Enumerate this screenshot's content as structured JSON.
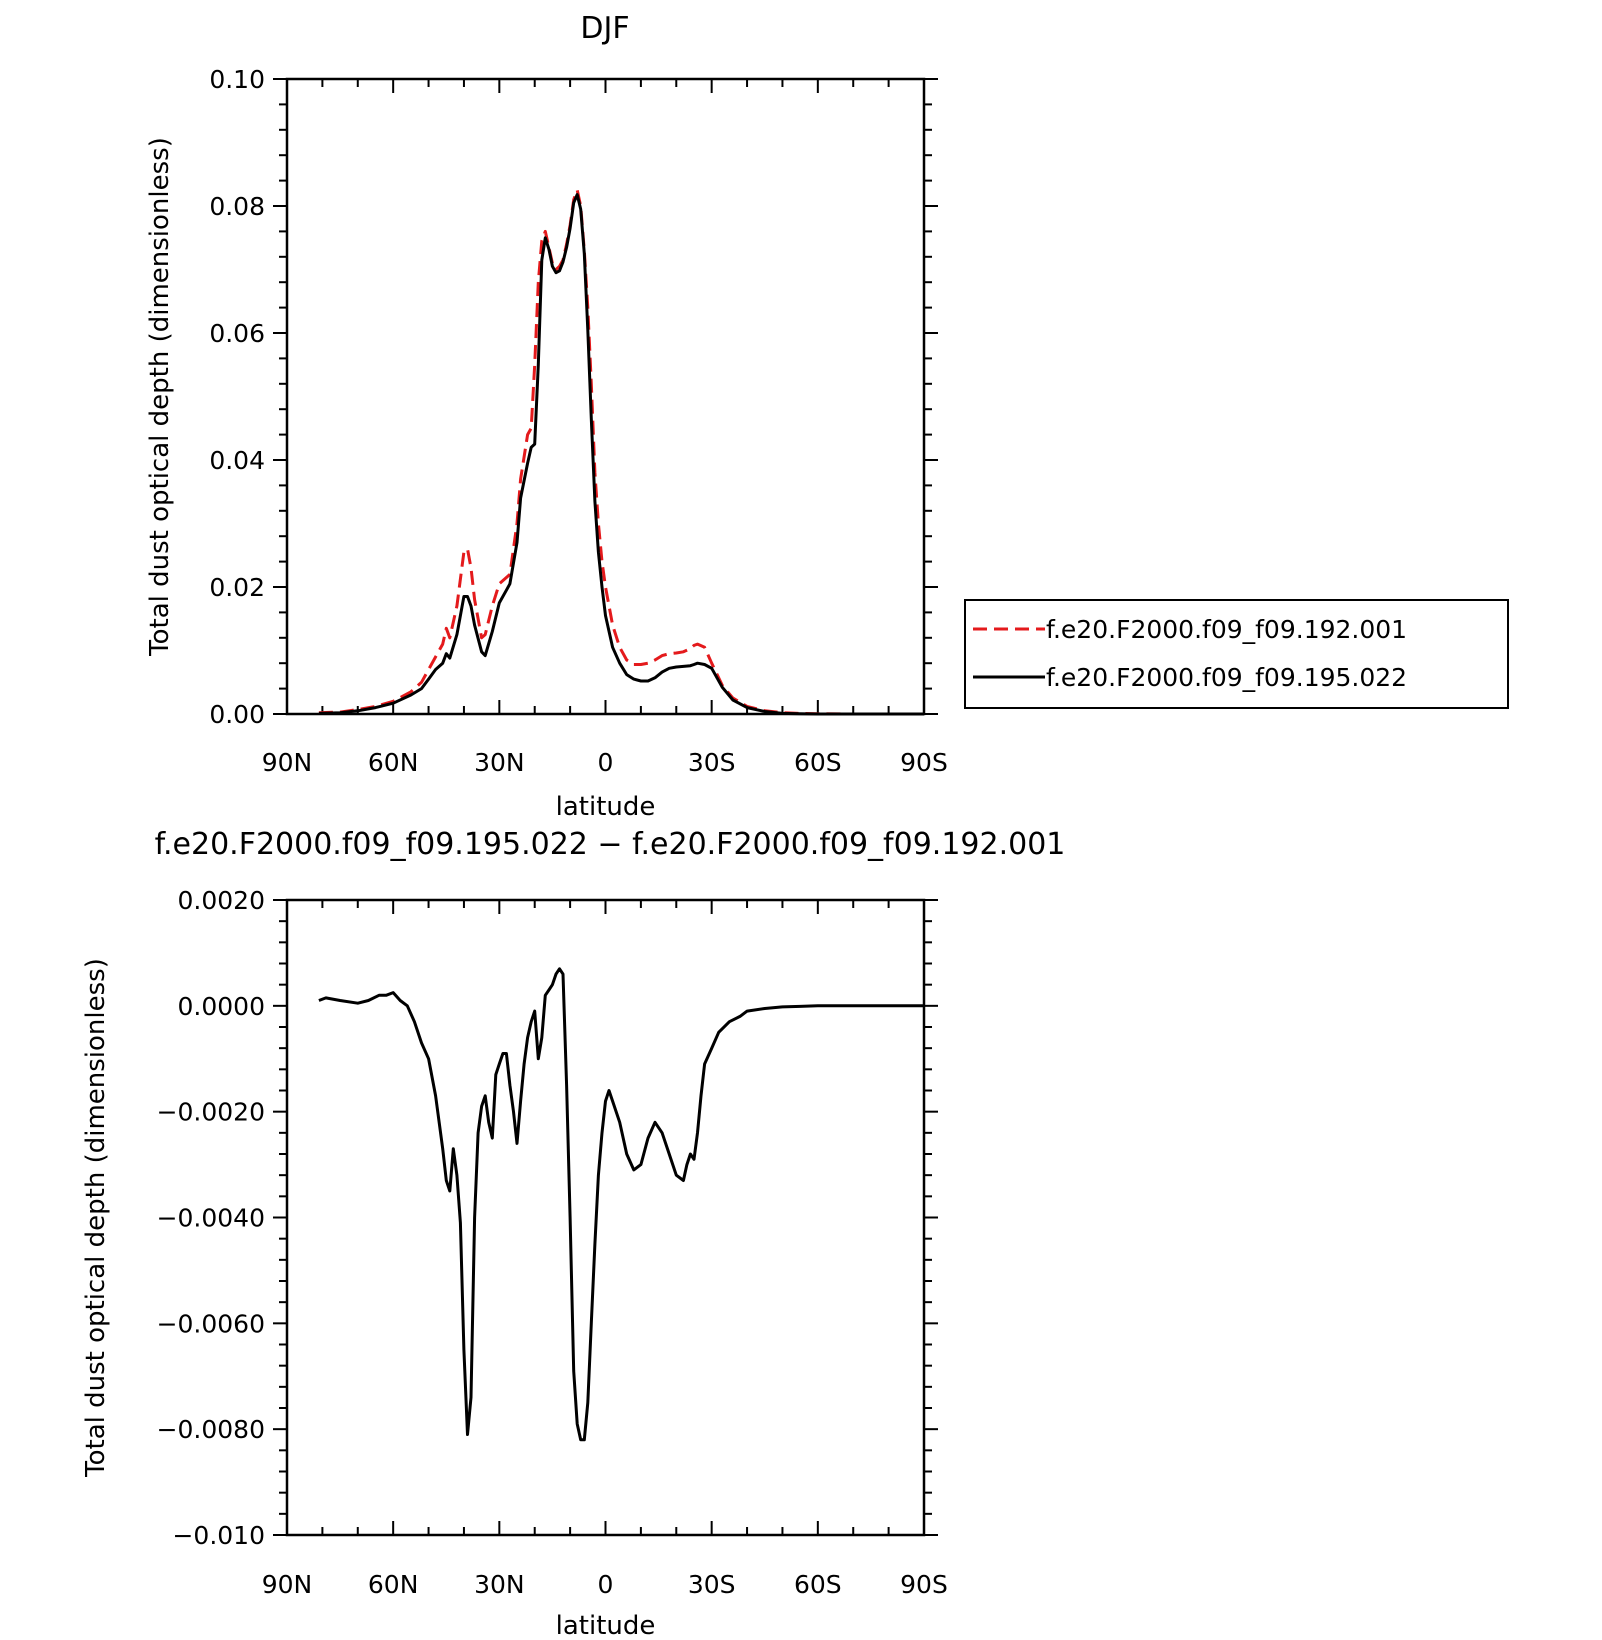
{
  "chart_data": [
    {
      "type": "line",
      "title": "DJF",
      "xlabel": "latitude",
      "ylabel": "Total dust optical depth (dimensionless)",
      "xlim": [
        90,
        -90
      ],
      "ylim": [
        0.0,
        0.1
      ],
      "x_ticks": [
        90,
        60,
        30,
        0,
        -30,
        -60,
        -90
      ],
      "x_tick_labels": [
        "90N",
        "60N",
        "30N",
        "0",
        "30S",
        "60S",
        "90S"
      ],
      "y_ticks": [
        0.0,
        0.02,
        0.04,
        0.06,
        0.08,
        0.1
      ],
      "y_tick_labels": [
        "0.00",
        "0.02",
        "0.04",
        "0.06",
        "0.08",
        "0.10"
      ],
      "legend_position": "right",
      "series": [
        {
          "name": "f.e20.F2000.f09_f09.192.001",
          "color": "#e41a1c",
          "dash": "dashed",
          "x": [
            81,
            75,
            70,
            65,
            60,
            55,
            52,
            50,
            48,
            46,
            45,
            44,
            42,
            40,
            39,
            38,
            37,
            35,
            34,
            32,
            30,
            28,
            27,
            25,
            24,
            22,
            21,
            20,
            19,
            18,
            17,
            16,
            15,
            14,
            13,
            12,
            11,
            10,
            9,
            8,
            7,
            6,
            5,
            4,
            3,
            2,
            1,
            0,
            -2,
            -4,
            -6,
            -8,
            -10,
            -12,
            -14,
            -16,
            -18,
            -20,
            -22,
            -24,
            -25,
            -26,
            -28,
            -30,
            -33,
            -36,
            -40,
            -45,
            -50,
            -55,
            -60,
            -70,
            -80,
            -90
          ],
          "y": [
            0.0002,
            0.0003,
            0.0007,
            0.0012,
            0.002,
            0.0035,
            0.005,
            0.007,
            0.009,
            0.011,
            0.0135,
            0.012,
            0.017,
            0.0255,
            0.026,
            0.023,
            0.018,
            0.012,
            0.0125,
            0.017,
            0.0205,
            0.0215,
            0.022,
            0.03,
            0.037,
            0.044,
            0.045,
            0.055,
            0.068,
            0.0745,
            0.076,
            0.0735,
            0.071,
            0.07,
            0.0705,
            0.0715,
            0.074,
            0.077,
            0.081,
            0.0825,
            0.08,
            0.073,
            0.064,
            0.052,
            0.038,
            0.03,
            0.024,
            0.02,
            0.014,
            0.0105,
            0.0085,
            0.0078,
            0.0078,
            0.008,
            0.0085,
            0.0092,
            0.0095,
            0.0096,
            0.0098,
            0.0103,
            0.0108,
            0.011,
            0.0105,
            0.008,
            0.0045,
            0.0025,
            0.0012,
            0.0005,
            0.0002,
            0.0001,
            5e-05,
            0.0,
            0.0,
            0.0
          ]
        },
        {
          "name": "f.e20.F2000.f09_f09.195.022",
          "color": "#000000",
          "dash": "solid",
          "x": [
            81,
            75,
            70,
            65,
            60,
            55,
            52,
            50,
            48,
            46,
            45,
            44,
            42,
            40,
            39,
            38,
            37,
            35,
            34,
            32,
            30,
            28,
            27,
            25,
            24,
            22,
            21,
            20,
            19,
            18,
            17,
            16,
            15,
            14,
            13,
            12,
            11,
            10,
            9,
            8,
            7,
            6,
            5,
            4,
            3,
            2,
            1,
            0,
            -2,
            -4,
            -6,
            -8,
            -10,
            -12,
            -14,
            -16,
            -18,
            -20,
            -22,
            -24,
            -25,
            -26,
            -28,
            -30,
            -33,
            -36,
            -40,
            -45,
            -50,
            -55,
            -60,
            -70,
            -80,
            -90
          ],
          "y": [
            0.0001,
            0.0002,
            0.0005,
            0.001,
            0.0017,
            0.003,
            0.004,
            0.0055,
            0.007,
            0.008,
            0.0095,
            0.0088,
            0.0125,
            0.0185,
            0.0185,
            0.017,
            0.014,
            0.0098,
            0.0092,
            0.013,
            0.0175,
            0.0195,
            0.0205,
            0.027,
            0.034,
            0.0395,
            0.042,
            0.0425,
            0.055,
            0.0715,
            0.075,
            0.0732,
            0.0705,
            0.0695,
            0.0698,
            0.0712,
            0.0735,
            0.0765,
            0.0805,
            0.0818,
            0.0795,
            0.0725,
            0.0605,
            0.0465,
            0.0335,
            0.0255,
            0.02,
            0.0155,
            0.0105,
            0.008,
            0.0062,
            0.0055,
            0.0052,
            0.0052,
            0.0057,
            0.0066,
            0.0072,
            0.0074,
            0.0075,
            0.0076,
            0.0078,
            0.008,
            0.0078,
            0.0072,
            0.0042,
            0.0022,
            0.001,
            0.0004,
            0.0001,
            5e-05,
            0.0,
            0.0,
            0.0,
            0.0
          ]
        }
      ]
    },
    {
      "type": "line",
      "title": "f.e20.F2000.f09_f09.195.022 − f.e20.F2000.f09_f09.192.001",
      "xlabel": "latitude",
      "ylabel": "Total dust optical depth (dimensionless)",
      "xlim": [
        90,
        -90
      ],
      "ylim": [
        -0.01,
        0.002
      ],
      "x_ticks": [
        90,
        60,
        30,
        0,
        -30,
        -60,
        -90
      ],
      "x_tick_labels": [
        "90N",
        "60N",
        "30N",
        "0",
        "30S",
        "60S",
        "90S"
      ],
      "y_ticks": [
        0.002,
        0.0,
        -0.002,
        -0.004,
        -0.006,
        -0.008,
        -0.01
      ],
      "y_tick_labels": [
        "0.0020",
        "0.0000",
        "−0.0020",
        "−0.0040",
        "−0.0060",
        "−0.0080",
        "−0.010"
      ],
      "series": [
        {
          "color": "#000000",
          "dash": "solid",
          "x": [
            81,
            79,
            75,
            70,
            67,
            64,
            62,
            60,
            58,
            56,
            54,
            52,
            50,
            48,
            46,
            45,
            44,
            43,
            42,
            41,
            40,
            39,
            38,
            37,
            36,
            35,
            34,
            33,
            32,
            31,
            30,
            29,
            28,
            27,
            26,
            25,
            24,
            23,
            22,
            21,
            20,
            19,
            18,
            17,
            16,
            15,
            14,
            13,
            12,
            11,
            10,
            9,
            8,
            7,
            6,
            5,
            4,
            3,
            2,
            1,
            0,
            -1,
            -2,
            -4,
            -6,
            -8,
            -10,
            -12,
            -14,
            -16,
            -18,
            -20,
            -22,
            -23,
            -24,
            -25,
            -26,
            -27,
            -28,
            -30,
            -32,
            -35,
            -38,
            -40,
            -45,
            -50,
            -55,
            -60,
            -70,
            -80,
            -90
          ],
          "y": [
            0.0001,
            0.00015,
            0.0001,
            5e-05,
            0.0001,
            0.0002,
            0.0002,
            0.00025,
            0.0001,
            0.0,
            -0.0003,
            -0.0007,
            -0.001,
            -0.0017,
            -0.0027,
            -0.0033,
            -0.0035,
            -0.0027,
            -0.0032,
            -0.0041,
            -0.0065,
            -0.0081,
            -0.0074,
            -0.004,
            -0.0024,
            -0.0019,
            -0.0017,
            -0.0022,
            -0.0025,
            -0.0013,
            -0.0011,
            -0.0009,
            -0.0009,
            -0.0015,
            -0.002,
            -0.0026,
            -0.0018,
            -0.0011,
            -0.0006,
            -0.0003,
            -0.0001,
            -0.001,
            -0.0006,
            0.0002,
            0.0003,
            0.0004,
            0.0006,
            0.0007,
            0.0006,
            -0.0015,
            -0.004,
            -0.0069,
            -0.0079,
            -0.0082,
            -0.0082,
            -0.0075,
            -0.006,
            -0.0045,
            -0.0032,
            -0.0024,
            -0.0018,
            -0.0016,
            -0.0018,
            -0.0022,
            -0.0028,
            -0.0031,
            -0.003,
            -0.0025,
            -0.0022,
            -0.0024,
            -0.0028,
            -0.0032,
            -0.0033,
            -0.003,
            -0.0028,
            -0.0029,
            -0.0024,
            -0.0017,
            -0.0011,
            -0.0008,
            -0.0005,
            -0.0003,
            -0.0002,
            -0.0001,
            -5e-05,
            -2e-05,
            -1e-05,
            0.0,
            0.0,
            0.0,
            0.0
          ]
        }
      ]
    }
  ]
}
